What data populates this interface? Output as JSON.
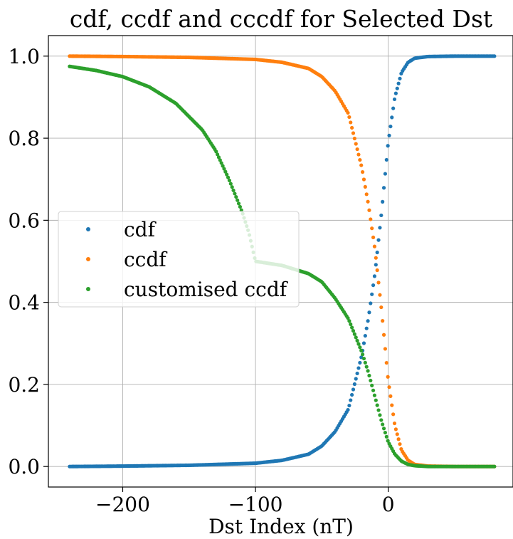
{
  "chart_data": {
    "type": "scatter",
    "title": "cdf, ccdf and cccdf for Selected Dst",
    "xlabel": "Dst Index (nT)",
    "ylabel": "",
    "xlim": [
      -256,
      94
    ],
    "ylim": [
      -0.05,
      1.05
    ],
    "xticks": [
      -200,
      -100,
      0
    ],
    "xtick_labels": [
      "−200",
      "−100",
      "0"
    ],
    "yticks": [
      0.0,
      0.2,
      0.4,
      0.6,
      0.8,
      1.0
    ],
    "ytick_labels": [
      "0.0",
      "0.2",
      "0.4",
      "0.6",
      "0.8",
      "1.0"
    ],
    "grid": true,
    "legend_position": "center-left",
    "x_range": [
      -240,
      80
    ],
    "point_count": 320,
    "series": [
      {
        "name": "cdf",
        "color": "#1f77b4",
        "samples": {
          "x": [
            -240,
            -200,
            -150,
            -100,
            -80,
            -60,
            -50,
            -40,
            -30,
            -20,
            -15,
            -10,
            -5,
            0,
            5,
            10,
            15,
            20,
            30,
            50,
            80
          ],
          "y": [
            0.0,
            0.001,
            0.003,
            0.008,
            0.015,
            0.03,
            0.05,
            0.085,
            0.14,
            0.27,
            0.36,
            0.47,
            0.62,
            0.79,
            0.9,
            0.96,
            0.985,
            0.995,
            0.999,
            1.0,
            1.0
          ]
        }
      },
      {
        "name": "ccdf",
        "color": "#ff7f0e",
        "samples": {
          "x": [
            -240,
            -200,
            -150,
            -100,
            -80,
            -60,
            -50,
            -40,
            -30,
            -20,
            -15,
            -10,
            -5,
            0,
            5,
            10,
            15,
            20,
            30,
            50,
            80
          ],
          "y": [
            1.0,
            0.999,
            0.997,
            0.992,
            0.985,
            0.97,
            0.95,
            0.915,
            0.86,
            0.73,
            0.64,
            0.53,
            0.38,
            0.21,
            0.1,
            0.04,
            0.015,
            0.005,
            0.001,
            0.0,
            0.0
          ]
        }
      },
      {
        "name": "customised ccdf",
        "color": "#2ca02c",
        "samples": {
          "x": [
            -240,
            -220,
            -200,
            -180,
            -160,
            -140,
            -130,
            -120,
            -110,
            -105,
            -100,
            -80,
            -60,
            -50,
            -40,
            -30,
            -20,
            -15,
            -10,
            -5,
            0,
            5,
            10,
            15,
            20,
            30,
            50,
            80
          ],
          "y": [
            0.975,
            0.965,
            0.95,
            0.925,
            0.885,
            0.82,
            0.77,
            0.7,
            0.62,
            0.57,
            0.5,
            0.49,
            0.47,
            0.45,
            0.41,
            0.36,
            0.28,
            0.23,
            0.17,
            0.11,
            0.06,
            0.03,
            0.013,
            0.005,
            0.002,
            0.0,
            0.0,
            0.0
          ]
        }
      }
    ]
  }
}
